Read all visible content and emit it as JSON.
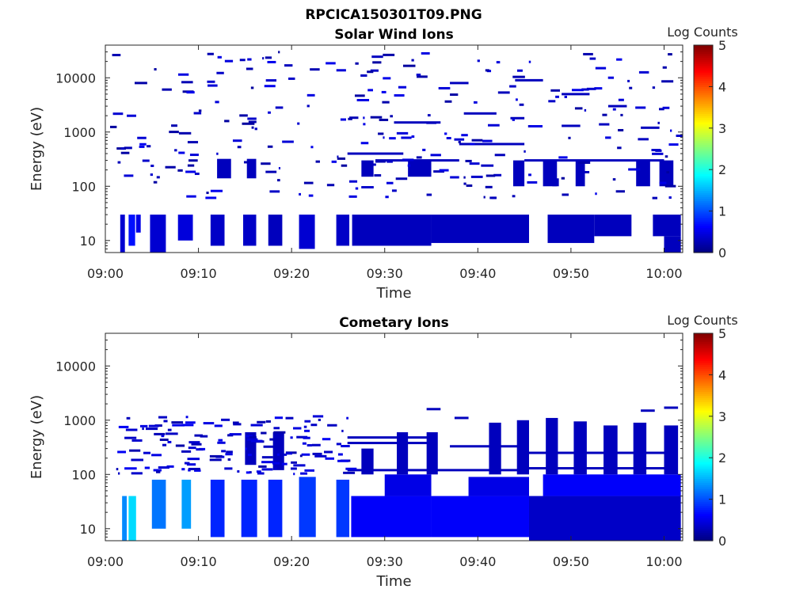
{
  "figure_title": "RPCICA150301T09.PNG",
  "chart_data": [
    {
      "type": "heatmap",
      "title": "Solar Wind Ions",
      "xlabel": "Time",
      "ylabel": "Energy (eV)",
      "xticks": [
        "09:00",
        "09:10",
        "09:20",
        "09:30",
        "09:40",
        "09:50",
        "10:00"
      ],
      "xlim": [
        "09:00",
        "10:02"
      ],
      "yscale": "log",
      "yticks": [
        "10",
        "100",
        "1000",
        "10000"
      ],
      "ylim": [
        6,
        40000
      ],
      "colorbar": {
        "label": "Log Counts",
        "range": [
          0,
          5
        ],
        "ticks": [
          "0",
          "1",
          "2",
          "3",
          "4",
          "5"
        ],
        "colormap": "jet"
      },
      "bands": [
        {
          "t": [
            1.6,
            2.1
          ],
          "e": [
            6,
            30
          ],
          "v": 0.4
        },
        {
          "t": [
            2.5,
            3.2
          ],
          "e": [
            8,
            30
          ],
          "v": 0.7
        },
        {
          "t": [
            3.3,
            3.8
          ],
          "e": [
            14,
            30
          ],
          "v": 0.5
        },
        {
          "t": [
            4.8,
            6.5
          ],
          "e": [
            6,
            30
          ],
          "v": 0.4
        },
        {
          "t": [
            7.8,
            9.4
          ],
          "e": [
            10,
            30
          ],
          "v": 0.45
        },
        {
          "t": [
            11.3,
            12.8
          ],
          "e": [
            8,
            30
          ],
          "v": 0.35
        },
        {
          "t": [
            14.8,
            16.2
          ],
          "e": [
            8,
            30
          ],
          "v": 0.35
        },
        {
          "t": [
            17.5,
            19.0
          ],
          "e": [
            8,
            30
          ],
          "v": 0.3
        },
        {
          "t": [
            20.8,
            22.5
          ],
          "e": [
            7,
            30
          ],
          "v": 0.4
        },
        {
          "t": [
            24.8,
            26.2
          ],
          "e": [
            8,
            30
          ],
          "v": 0.35
        },
        {
          "t": [
            26.5,
            35.0
          ],
          "e": [
            8,
            30
          ],
          "v": 0.3
        },
        {
          "t": [
            35.0,
            45.5
          ],
          "e": [
            9,
            30
          ],
          "v": 0.3
        },
        {
          "t": [
            47.5,
            52.5
          ],
          "e": [
            9,
            30
          ],
          "v": 0.3
        },
        {
          "t": [
            52.5,
            56.5
          ],
          "e": [
            12,
            30
          ],
          "v": 0.3
        },
        {
          "t": [
            58.8,
            61.8
          ],
          "e": [
            12,
            30
          ],
          "v": 0.3
        },
        {
          "t": [
            60.0,
            61.8
          ],
          "e": [
            6,
            12
          ],
          "v": 0.3
        }
      ],
      "blocks": [
        {
          "t": [
            12.0,
            13.5
          ],
          "e": [
            140,
            320
          ],
          "v": 0.3
        },
        {
          "t": [
            15.2,
            16.2
          ],
          "e": [
            140,
            320
          ],
          "v": 0.3
        },
        {
          "t": [
            27.5,
            28.8
          ],
          "e": [
            150,
            300
          ],
          "v": 0.3
        },
        {
          "t": [
            32.5,
            35.0
          ],
          "e": [
            150,
            300
          ],
          "v": 0.3
        },
        {
          "t": [
            43.8,
            45.0
          ],
          "e": [
            100,
            300
          ],
          "v": 0.3
        },
        {
          "t": [
            47.0,
            48.5
          ],
          "e": [
            100,
            300
          ],
          "v": 0.3
        },
        {
          "t": [
            50.5,
            51.5
          ],
          "e": [
            100,
            300
          ],
          "v": 0.3
        },
        {
          "t": [
            57.0,
            58.5
          ],
          "e": [
            100,
            300
          ],
          "v": 0.3
        },
        {
          "t": [
            59.5,
            61.0
          ],
          "e": [
            100,
            300
          ],
          "v": 0.3
        },
        {
          "t": [
            48.0,
            48.7
          ],
          "e": [
            100,
            140
          ],
          "v": 0.3
        }
      ],
      "lines": [
        {
          "t": [
            26.0,
            32.0
          ],
          "e": 400,
          "v": 0.3
        },
        {
          "t": [
            29.0,
            38.0
          ],
          "e": 300,
          "v": 0.3
        },
        {
          "t": [
            38.0,
            45.0
          ],
          "e": 600,
          "v": 0.3
        },
        {
          "t": [
            45.0,
            60.0
          ],
          "e": 300,
          "v": 0.3
        },
        {
          "t": [
            31.0,
            36.0
          ],
          "e": 1500,
          "v": 0.3
        },
        {
          "t": [
            38.5,
            42.0
          ],
          "e": 2200,
          "v": 0.3
        },
        {
          "t": [
            43.5,
            45.0
          ],
          "e": 1800,
          "v": 0.3
        },
        {
          "t": [
            49.0,
            51.0
          ],
          "e": 1300,
          "v": 0.3
        },
        {
          "t": [
            37.0,
            39.0
          ],
          "e": 8000,
          "v": 0.3
        },
        {
          "t": [
            44.0,
            47.0
          ],
          "e": 9000,
          "v": 0.3
        },
        {
          "t": [
            49.0,
            52.0
          ],
          "e": 5000,
          "v": 0.3
        },
        {
          "t": [
            54.0,
            56.0
          ],
          "e": 3000,
          "v": 0.3
        },
        {
          "t": [
            57.5,
            59.5
          ],
          "e": 1200,
          "v": 0.3
        }
      ],
      "scatter": {
        "t": [
          0.5,
          61.8
        ],
        "e": [
          60,
          30000
        ],
        "count": 260,
        "seed": 7,
        "v": [
          0.15,
          0.55
        ]
      }
    },
    {
      "type": "heatmap",
      "title": "Cometary Ions",
      "xlabel": "Time",
      "ylabel": "Energy (eV)",
      "xticks": [
        "09:00",
        "09:10",
        "09:20",
        "09:30",
        "09:40",
        "09:50",
        "10:00"
      ],
      "xlim": [
        "09:00",
        "10:02"
      ],
      "yscale": "log",
      "yticks": [
        "10",
        "100",
        "1000",
        "10000"
      ],
      "ylim": [
        6,
        40000
      ],
      "colorbar": {
        "label": "Log Counts",
        "range": [
          0,
          5
        ],
        "ticks": [
          "0",
          "1",
          "2",
          "3",
          "4",
          "5"
        ],
        "colormap": "jet"
      },
      "bands": [
        {
          "t": [
            1.8,
            2.3
          ],
          "e": [
            6,
            40
          ],
          "v": 1.3
        },
        {
          "t": [
            2.5,
            3.3
          ],
          "e": [
            6,
            40
          ],
          "v": 1.7
        },
        {
          "t": [
            5.0,
            6.5
          ],
          "e": [
            10,
            80
          ],
          "v": 1.2
        },
        {
          "t": [
            8.2,
            9.2
          ],
          "e": [
            10,
            80
          ],
          "v": 1.4
        },
        {
          "t": [
            11.3,
            12.8
          ],
          "e": [
            7,
            80
          ],
          "v": 0.8
        },
        {
          "t": [
            14.6,
            16.3
          ],
          "e": [
            7,
            80
          ],
          "v": 0.8
        },
        {
          "t": [
            17.5,
            19.0
          ],
          "e": [
            7,
            80
          ],
          "v": 0.8
        },
        {
          "t": [
            20.8,
            22.6
          ],
          "e": [
            7,
            90
          ],
          "v": 0.9
        },
        {
          "t": [
            24.8,
            26.2
          ],
          "e": [
            7,
            80
          ],
          "v": 0.9
        },
        {
          "t": [
            26.4,
            35.0
          ],
          "e": [
            7,
            40
          ],
          "v": 0.6
        },
        {
          "t": [
            30.0,
            35.0
          ],
          "e": [
            40,
            100
          ],
          "v": 0.5
        },
        {
          "t": [
            35.0,
            45.5
          ],
          "e": [
            7,
            40
          ],
          "v": 0.6
        },
        {
          "t": [
            39.0,
            45.5
          ],
          "e": [
            40,
            90
          ],
          "v": 0.5
        },
        {
          "t": [
            45.5,
            61.8
          ],
          "e": [
            6,
            40
          ],
          "v": 0.35
        },
        {
          "t": [
            47.0,
            61.8
          ],
          "e": [
            40,
            100
          ],
          "v": 0.6
        }
      ],
      "blocks": [
        {
          "t": [
            15.0,
            16.2
          ],
          "e": [
            150,
            600
          ],
          "v": 0.3
        },
        {
          "t": [
            18.0,
            19.2
          ],
          "e": [
            120,
            600
          ],
          "v": 0.3
        },
        {
          "t": [
            27.5,
            28.8
          ],
          "e": [
            100,
            300
          ],
          "v": 0.3
        },
        {
          "t": [
            31.3,
            32.5
          ],
          "e": [
            100,
            600
          ],
          "v": 0.3
        },
        {
          "t": [
            34.5,
            35.7
          ],
          "e": [
            100,
            600
          ],
          "v": 0.3
        },
        {
          "t": [
            41.2,
            42.5
          ],
          "e": [
            100,
            900
          ],
          "v": 0.3
        },
        {
          "t": [
            44.2,
            45.5
          ],
          "e": [
            100,
            1000
          ],
          "v": 0.3
        },
        {
          "t": [
            47.3,
            48.6
          ],
          "e": [
            100,
            1100
          ],
          "v": 0.3
        },
        {
          "t": [
            50.3,
            51.7
          ],
          "e": [
            100,
            950
          ],
          "v": 0.3
        },
        {
          "t": [
            53.5,
            55.0
          ],
          "e": [
            100,
            800
          ],
          "v": 0.3
        },
        {
          "t": [
            56.7,
            58.1
          ],
          "e": [
            100,
            900
          ],
          "v": 0.3
        },
        {
          "t": [
            60.0,
            61.5
          ],
          "e": [
            100,
            800
          ],
          "v": 0.3
        }
      ],
      "lines": [
        {
          "t": [
            26.0,
            35.0
          ],
          "e": 380,
          "v": 0.3
        },
        {
          "t": [
            26.0,
            35.0
          ],
          "e": 480,
          "v": 0.3
        },
        {
          "t": [
            37.0,
            45.0
          ],
          "e": 330,
          "v": 0.3
        },
        {
          "t": [
            45.0,
            61.0
          ],
          "e": 250,
          "v": 0.3
        },
        {
          "t": [
            45.0,
            61.0
          ],
          "e": 130,
          "v": 0.3
        },
        {
          "t": [
            26.0,
            45.0
          ],
          "e": 120,
          "v": 0.3
        },
        {
          "t": [
            34.5,
            36.0
          ],
          "e": 1600,
          "v": 0.3
        },
        {
          "t": [
            37.5,
            39.0
          ],
          "e": 1100,
          "v": 0.3
        },
        {
          "t": [
            57.5,
            59.0
          ],
          "e": 1500,
          "v": 0.3
        },
        {
          "t": [
            60.0,
            61.5
          ],
          "e": 1700,
          "v": 0.3
        }
      ],
      "scatter": {
        "t": [
          1.0,
          26.0
        ],
        "e": [
          100,
          1200
        ],
        "count": 140,
        "seed": 11,
        "v": [
          0.2,
          0.6
        ]
      }
    }
  ]
}
